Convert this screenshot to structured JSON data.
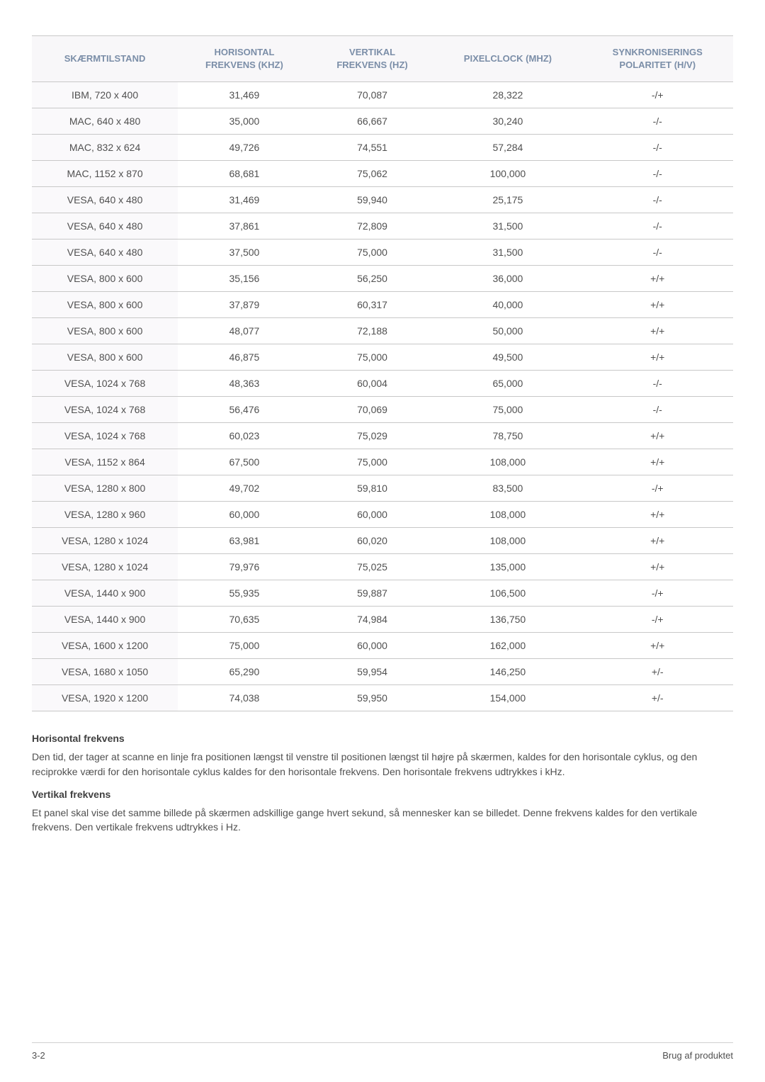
{
  "table": {
    "columns": [
      "SKÆRMTILSTAND",
      "HORISONTAL FREKVENS (KHZ)",
      "VERTIKAL FREKVENS (HZ)",
      "PIXELCLOCK (MHZ)",
      "SYNKRONISERINGS POLARITET (H/V)"
    ],
    "column_widths": [
      "20%",
      "20%",
      "20%",
      "20%",
      "20%"
    ],
    "header_color": "#7b8ea8",
    "header_bg": "#f8f7f9",
    "first_col_bg": "#faf9fb",
    "border_color": "#c8c8c8",
    "font_size": 14,
    "header_font_size": 13,
    "rows": [
      [
        "IBM, 720 x 400",
        "31,469",
        "70,087",
        "28,322",
        "-/+"
      ],
      [
        "MAC, 640 x 480",
        "35,000",
        "66,667",
        "30,240",
        "-/-"
      ],
      [
        "MAC, 832 x 624",
        "49,726",
        "74,551",
        "57,284",
        "-/-"
      ],
      [
        "MAC, 1152 x 870",
        "68,681",
        "75,062",
        "100,000",
        "-/-"
      ],
      [
        "VESA, 640 x 480",
        "31,469",
        "59,940",
        "25,175",
        "-/-"
      ],
      [
        "VESA, 640 x 480",
        "37,861",
        "72,809",
        "31,500",
        "-/-"
      ],
      [
        "VESA, 640 x 480",
        "37,500",
        "75,000",
        "31,500",
        "-/-"
      ],
      [
        "VESA, 800 x 600",
        "35,156",
        "56,250",
        "36,000",
        "+/+"
      ],
      [
        "VESA, 800 x 600",
        "37,879",
        "60,317",
        "40,000",
        "+/+"
      ],
      [
        "VESA, 800 x 600",
        "48,077",
        "72,188",
        "50,000",
        "+/+"
      ],
      [
        "VESA, 800 x 600",
        "46,875",
        "75,000",
        "49,500",
        "+/+"
      ],
      [
        "VESA, 1024 x 768",
        "48,363",
        "60,004",
        "65,000",
        "-/-"
      ],
      [
        "VESA, 1024 x 768",
        "56,476",
        "70,069",
        "75,000",
        "-/-"
      ],
      [
        "VESA, 1024 x 768",
        "60,023",
        "75,029",
        "78,750",
        "+/+"
      ],
      [
        "VESA, 1152 x 864",
        "67,500",
        "75,000",
        "108,000",
        "+/+"
      ],
      [
        "VESA, 1280 x 800",
        "49,702",
        "59,810",
        "83,500",
        "-/+"
      ],
      [
        "VESA, 1280 x 960",
        "60,000",
        "60,000",
        "108,000",
        "+/+"
      ],
      [
        "VESA, 1280 x 1024",
        "63,981",
        "60,020",
        "108,000",
        "+/+"
      ],
      [
        "VESA, 1280 x 1024",
        "79,976",
        "75,025",
        "135,000",
        "+/+"
      ],
      [
        "VESA, 1440 x 900",
        "55,935",
        "59,887",
        "106,500",
        "-/+"
      ],
      [
        "VESA, 1440 x 900",
        "70,635",
        "74,984",
        "136,750",
        "-/+"
      ],
      [
        "VESA, 1600 x 1200",
        "75,000",
        "60,000",
        "162,000",
        "+/+"
      ],
      [
        "VESA, 1680 x 1050",
        "65,290",
        "59,954",
        "146,250",
        "+/-"
      ],
      [
        "VESA, 1920 x 1200",
        "74,038",
        "59,950",
        "154,000",
        "+/-"
      ]
    ]
  },
  "descriptions": [
    {
      "heading": "Horisontal frekvens",
      "text": "Den tid, der tager at scanne en linje fra positionen længst til venstre til positionen længst til højre på skærmen, kaldes for den horisontale cyklus, og den reciprokke værdi for den horisontale cyklus kaldes for den horisontale frekvens. Den horisontale frekvens udtrykkes i kHz."
    },
    {
      "heading": "Vertikal frekvens",
      "text": "Et panel skal vise det samme billede på skærmen adskillige gange hvert sekund, så mennesker kan se billedet. Denne frekvens kaldes for den vertikale frekvens. Den vertikale frekvens udtrykkes i Hz."
    }
  ],
  "footer": {
    "left": "3-2",
    "right": "Brug af produktet"
  },
  "page": {
    "background_color": "#ffffff",
    "text_color": "#505050"
  }
}
